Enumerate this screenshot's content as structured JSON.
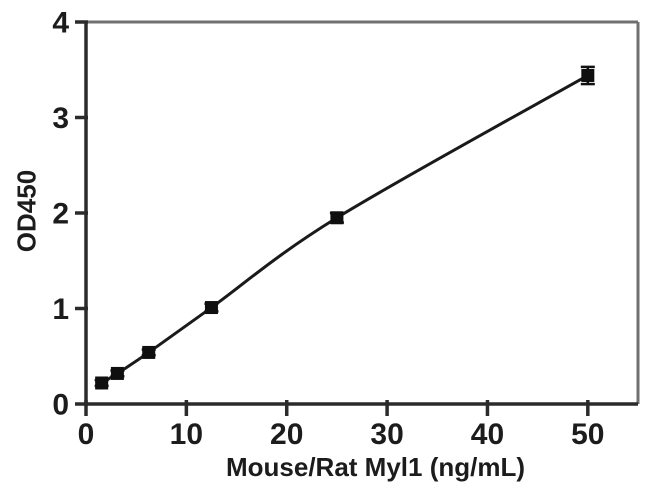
{
  "chart_data": {
    "type": "line",
    "title": "",
    "xlabel": "Mouse/Rat Myl1 (ng/mL)",
    "ylabel": "OD450",
    "x": [
      1.56,
      3.13,
      6.25,
      12.5,
      25,
      50
    ],
    "y": [
      0.22,
      0.32,
      0.54,
      1.01,
      1.95,
      3.44
    ],
    "y_error": [
      0.03,
      0.03,
      0.03,
      0.04,
      0.05,
      0.09
    ],
    "x_ticks": [
      0,
      10,
      20,
      30,
      40,
      50
    ],
    "y_ticks": [
      0,
      1,
      2,
      3,
      4
    ],
    "xlim": [
      0,
      55
    ],
    "ylim": [
      0,
      4
    ],
    "grid": false,
    "legend": null,
    "marker": "filled-square",
    "curve": "smooth",
    "colors": {
      "line": "#1a1a1a",
      "marker": "#0f0f0f",
      "error_bar": "#111111",
      "axis": "#2b2b2b",
      "frame": "#707070",
      "text": "#1c1c1c",
      "background": "#ffffff"
    }
  }
}
